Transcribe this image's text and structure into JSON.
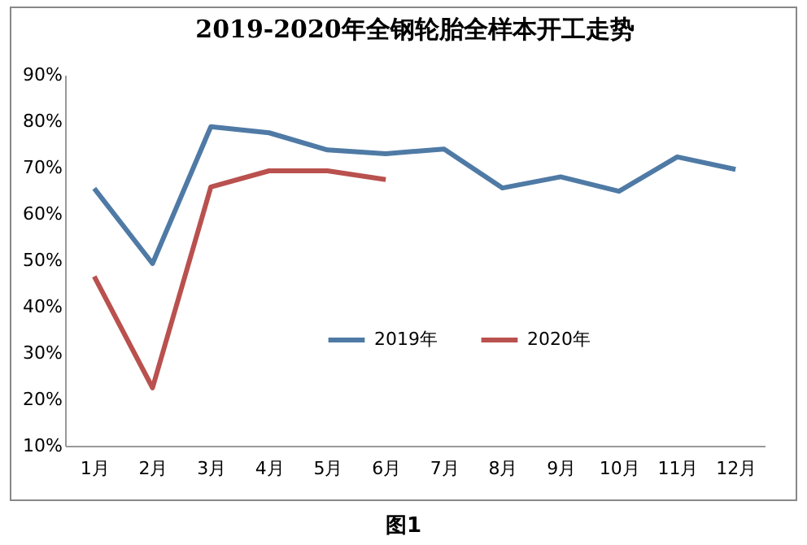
{
  "chart_data": {
    "type": "line",
    "title": "2019-2020年全钢轮胎全样本开工走势",
    "categories": [
      "1月",
      "2月",
      "3月",
      "4月",
      "5月",
      "6月",
      "7月",
      "8月",
      "9月",
      "10月",
      "11月",
      "12月"
    ],
    "series": [
      {
        "name": "2019年",
        "color": "#4f7aa5",
        "values": [
          65.5,
          49.3,
          78.8,
          77.5,
          73.8,
          73,
          74,
          65.6,
          68,
          64.9,
          72.3,
          69.6
        ]
      },
      {
        "name": "2020年",
        "color": "#b9514e",
        "values": [
          46.5,
          22.5,
          65.8,
          69.3,
          69.3,
          67.4,
          null,
          null,
          null,
          null,
          null,
          null
        ]
      }
    ],
    "ylim": [
      10,
      90
    ],
    "yticks": [
      {
        "value": 10,
        "label": "10%"
      },
      {
        "value": 20,
        "label": "20%"
      },
      {
        "value": 30,
        "label": "30%"
      },
      {
        "value": 40,
        "label": "40%"
      },
      {
        "value": 50,
        "label": "50%"
      },
      {
        "value": 60,
        "label": "60%"
      },
      {
        "value": 70,
        "label": "70%"
      },
      {
        "value": 80,
        "label": "80%"
      },
      {
        "value": 90,
        "label": "90%"
      }
    ],
    "grid": false,
    "legend": "center",
    "marker": "none",
    "line_style": "solid",
    "annotations": [
      "图1"
    ]
  }
}
